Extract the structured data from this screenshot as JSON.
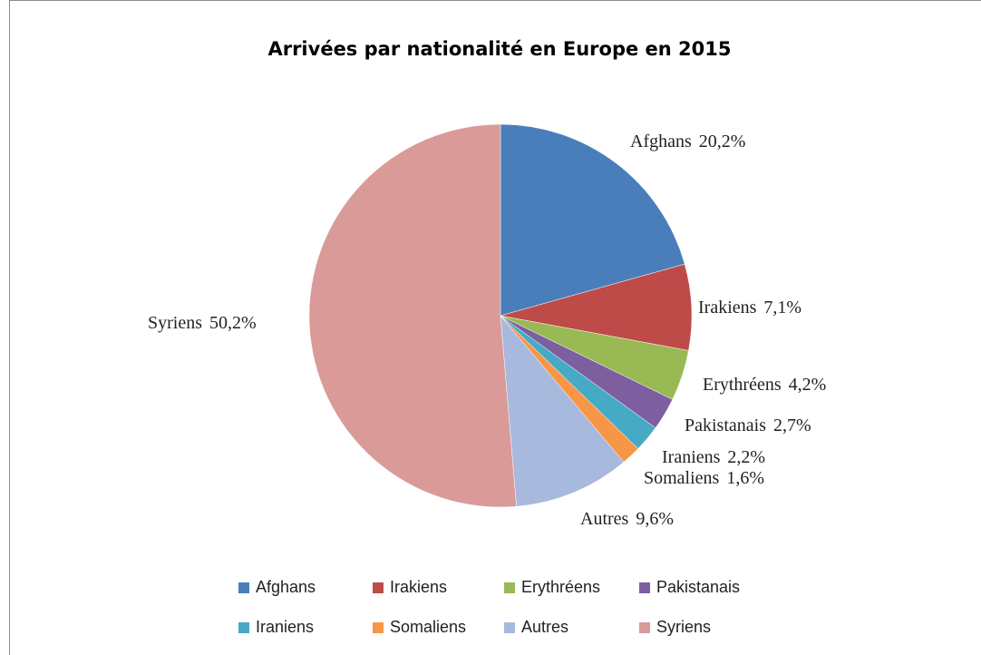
{
  "chart_data": {
    "type": "pie",
    "title": "Arrivées par nationalité en Europe en 2015",
    "categories": [
      "Afghans",
      "Irakiens",
      "Erythréens",
      "Pakistanais",
      "Iraniens",
      "Somaliens",
      "Autres",
      "Syriens"
    ],
    "values": [
      20.2,
      7.1,
      4.2,
      2.7,
      2.2,
      1.6,
      9.6,
      50.2
    ],
    "value_labels": [
      "20,2%",
      "7,1%",
      "4,2%",
      "2,7%",
      "2,2%",
      "1,6%",
      "9,6%",
      "50,2%"
    ],
    "colors": [
      "#4a7ebb",
      "#be4b48",
      "#98b954",
      "#7d5fa0",
      "#46aac5",
      "#f79646",
      "#a7b9dc",
      "#d99a98"
    ],
    "legend": "bottom"
  }
}
